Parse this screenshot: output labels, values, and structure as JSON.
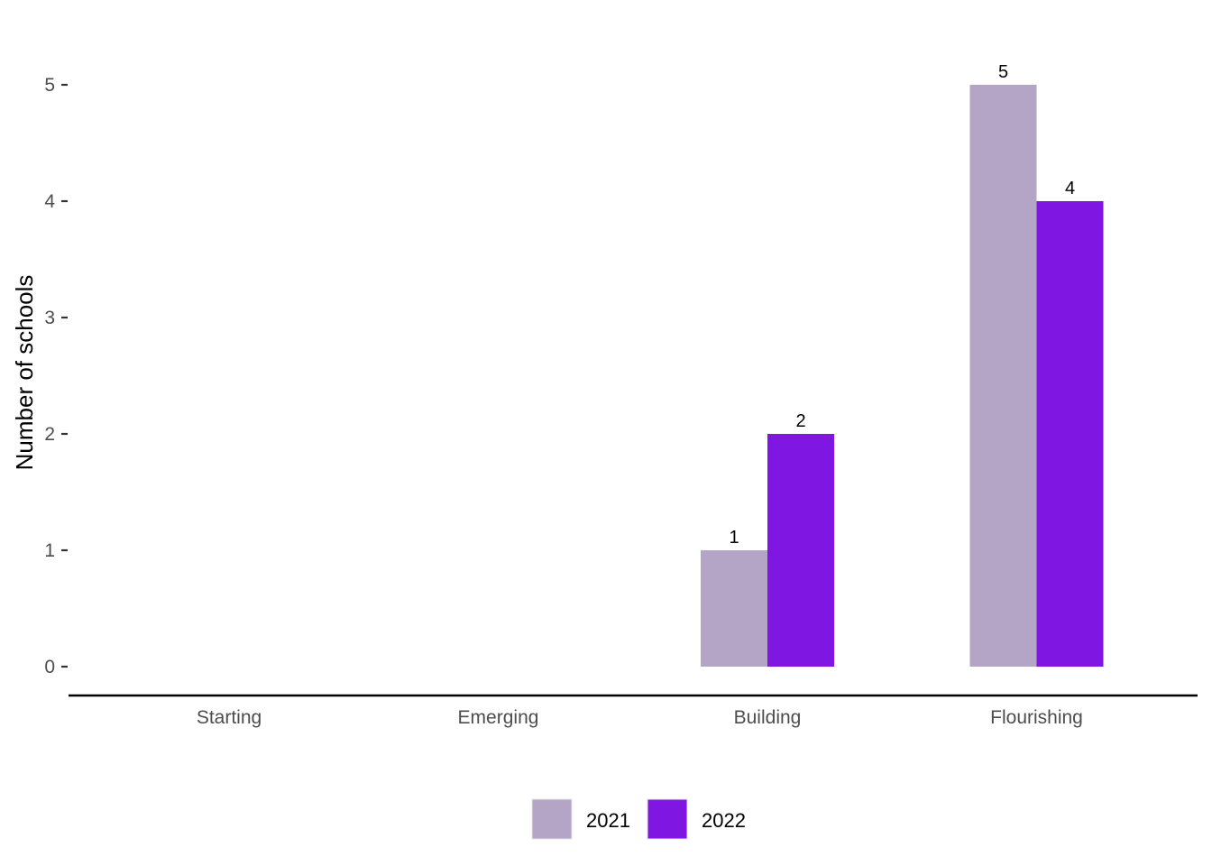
{
  "chart_data": {
    "type": "bar",
    "title": "",
    "xlabel": "",
    "ylabel": "Number of schools",
    "categories": [
      "Starting",
      "Emerging",
      "Building",
      "Flourishing"
    ],
    "series": [
      {
        "name": "2021",
        "values": [
          0,
          0,
          1,
          5
        ],
        "color": "#b4a4c6"
      },
      {
        "name": "2022",
        "values": [
          0,
          0,
          2,
          4
        ],
        "color": "#7f16e1"
      }
    ],
    "ylim": [
      0,
      5
    ],
    "yticks": [
      0,
      1,
      2,
      3,
      4,
      5
    ],
    "grid": false,
    "legend_position": "bottom"
  }
}
